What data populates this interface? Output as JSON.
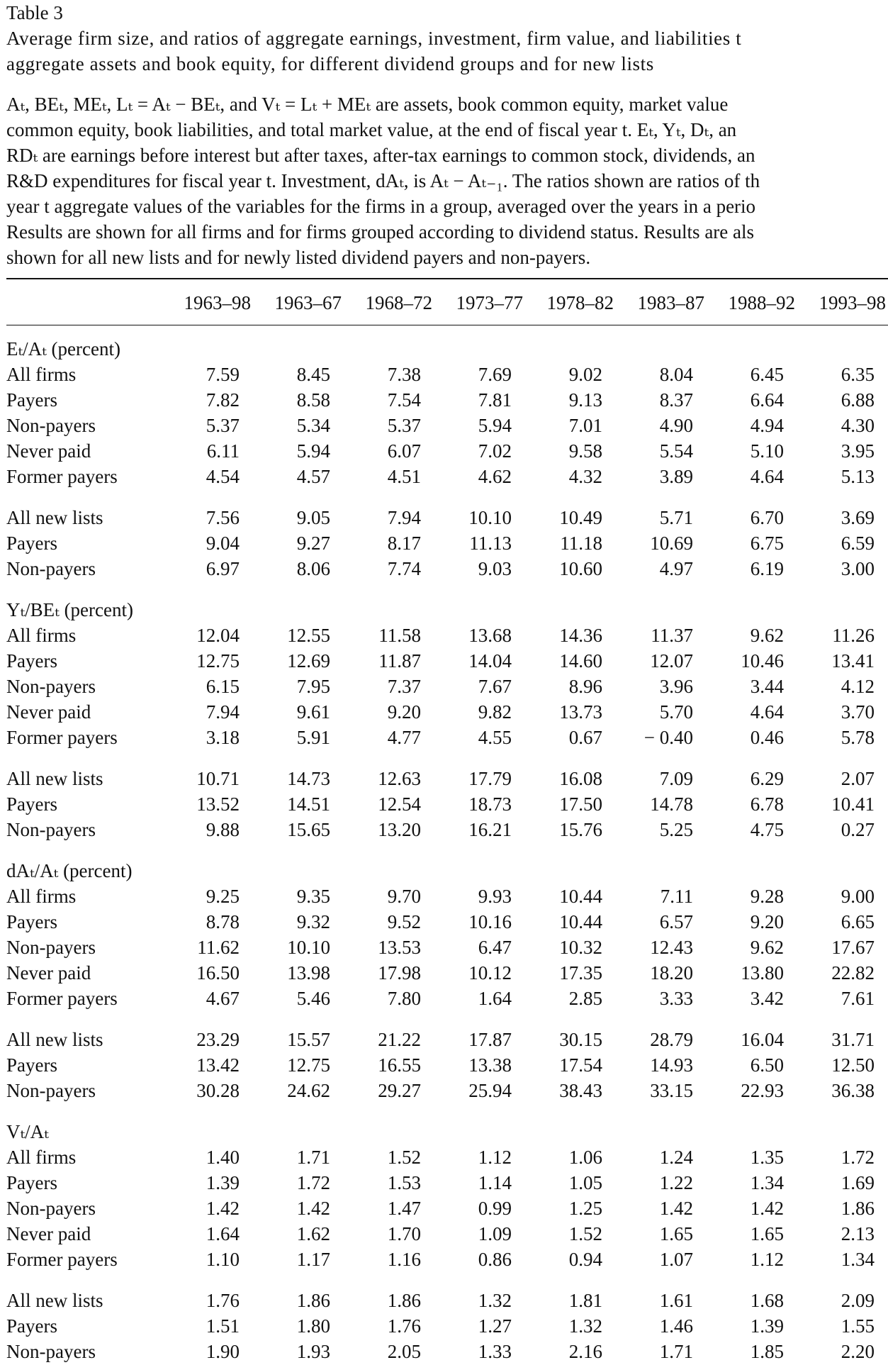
{
  "table_label": "Table 3",
  "caption": [
    "Average firm size, and ratios of aggregate earnings, investment, firm value, and liabilities t",
    "aggregate assets and book equity, for different dividend groups and for new lists"
  ],
  "notes": [
    "Aₜ, BEₜ, MEₜ, Lₜ = Aₜ − BEₜ, and Vₜ = Lₜ + MEₜ are assets, book common equity, market value",
    "common equity, book liabilities, and total market value, at the end of fiscal year t. Eₜ, Yₜ, Dₜ, an",
    "RDₜ are earnings before interest but after taxes, after-tax earnings to common stock, dividends, an",
    "R&D expenditures for fiscal year t. Investment, dAₜ, is Aₜ − Aₜ₋₁. The ratios shown are ratios of th",
    "year t aggregate values of the variables for the firms in a group, averaged over the years in a perio",
    "Results are shown for all firms and for firms grouped according to dividend status. Results are als",
    "shown for all new lists and for newly listed dividend payers and non-payers."
  ],
  "columns": [
    "1963–98",
    "1963–67",
    "1968–72",
    "1973–77",
    "1978–82",
    "1983–87",
    "1988–92",
    "1993–98"
  ],
  "sections": [
    {
      "title": "Eₜ/Aₜ (percent)",
      "groups": [
        [
          {
            "label": "All firms",
            "values": [
              "7.59",
              "8.45",
              "7.38",
              "7.69",
              "9.02",
              "8.04",
              "6.45",
              "6.35"
            ]
          },
          {
            "label": "Payers",
            "values": [
              "7.82",
              "8.58",
              "7.54",
              "7.81",
              "9.13",
              "8.37",
              "6.64",
              "6.88"
            ]
          },
          {
            "label": "Non-payers",
            "values": [
              "5.37",
              "5.34",
              "5.37",
              "5.94",
              "7.01",
              "4.90",
              "4.94",
              "4.30"
            ]
          },
          {
            "label": "Never paid",
            "values": [
              "6.11",
              "5.94",
              "6.07",
              "7.02",
              "9.58",
              "5.54",
              "5.10",
              "3.95"
            ]
          },
          {
            "label": "Former payers",
            "values": [
              "4.54",
              "4.57",
              "4.51",
              "4.62",
              "4.32",
              "3.89",
              "4.64",
              "5.13"
            ]
          }
        ],
        [
          {
            "label": "All new lists",
            "values": [
              "7.56",
              "9.05",
              "7.94",
              "10.10",
              "10.49",
              "5.71",
              "6.70",
              "3.69"
            ]
          },
          {
            "label": "Payers",
            "values": [
              "9.04",
              "9.27",
              "8.17",
              "11.13",
              "11.18",
              "10.69",
              "6.75",
              "6.59"
            ]
          },
          {
            "label": "Non-payers",
            "values": [
              "6.97",
              "8.06",
              "7.74",
              "9.03",
              "10.60",
              "4.97",
              "6.19",
              "3.00"
            ]
          }
        ]
      ]
    },
    {
      "title": "Yₜ/BEₜ (percent)",
      "groups": [
        [
          {
            "label": "All firms",
            "values": [
              "12.04",
              "12.55",
              "11.58",
              "13.68",
              "14.36",
              "11.37",
              "9.62",
              "11.26"
            ]
          },
          {
            "label": "Payers",
            "values": [
              "12.75",
              "12.69",
              "11.87",
              "14.04",
              "14.60",
              "12.07",
              "10.46",
              "13.41"
            ]
          },
          {
            "label": "Non-payers",
            "values": [
              "6.15",
              "7.95",
              "7.37",
              "7.67",
              "8.96",
              "3.96",
              "3.44",
              "4.12"
            ]
          },
          {
            "label": "Never paid",
            "values": [
              "7.94",
              "9.61",
              "9.20",
              "9.82",
              "13.73",
              "5.70",
              "4.64",
              "3.70"
            ]
          },
          {
            "label": "Former payers",
            "values": [
              "3.18",
              "5.91",
              "4.77",
              "4.55",
              "0.67",
              "− 0.40",
              "0.46",
              "5.78"
            ]
          }
        ],
        [
          {
            "label": "All new lists",
            "values": [
              "10.71",
              "14.73",
              "12.63",
              "17.79",
              "16.08",
              "7.09",
              "6.29",
              "2.07"
            ]
          },
          {
            "label": "Payers",
            "values": [
              "13.52",
              "14.51",
              "12.54",
              "18.73",
              "17.50",
              "14.78",
              "6.78",
              "10.41"
            ]
          },
          {
            "label": "Non-payers",
            "values": [
              "9.88",
              "15.65",
              "13.20",
              "16.21",
              "15.76",
              "5.25",
              "4.75",
              "0.27"
            ]
          }
        ]
      ]
    },
    {
      "title": "dAₜ/Aₜ (percent)",
      "groups": [
        [
          {
            "label": "All firms",
            "values": [
              "9.25",
              "9.35",
              "9.70",
              "9.93",
              "10.44",
              "7.11",
              "9.28",
              "9.00"
            ]
          },
          {
            "label": "Payers",
            "values": [
              "8.78",
              "9.32",
              "9.52",
              "10.16",
              "10.44",
              "6.57",
              "9.20",
              "6.65"
            ]
          },
          {
            "label": "Non-payers",
            "values": [
              "11.62",
              "10.10",
              "13.53",
              "6.47",
              "10.32",
              "12.43",
              "9.62",
              "17.67"
            ]
          },
          {
            "label": "Never paid",
            "values": [
              "16.50",
              "13.98",
              "17.98",
              "10.12",
              "17.35",
              "18.20",
              "13.80",
              "22.82"
            ]
          },
          {
            "label": "Former payers",
            "values": [
              "4.67",
              "5.46",
              "7.80",
              "1.64",
              "2.85",
              "3.33",
              "3.42",
              "7.61"
            ]
          }
        ],
        [
          {
            "label": "All new lists",
            "values": [
              "23.29",
              "15.57",
              "21.22",
              "17.87",
              "30.15",
              "28.79",
              "16.04",
              "31.71"
            ]
          },
          {
            "label": "Payers",
            "values": [
              "13.42",
              "12.75",
              "16.55",
              "13.38",
              "17.54",
              "14.93",
              "6.50",
              "12.50"
            ]
          },
          {
            "label": "Non-payers",
            "values": [
              "30.28",
              "24.62",
              "29.27",
              "25.94",
              "38.43",
              "33.15",
              "22.93",
              "36.38"
            ]
          }
        ]
      ]
    },
    {
      "title": "Vₜ/Aₜ",
      "groups": [
        [
          {
            "label": "All firms",
            "values": [
              "1.40",
              "1.71",
              "1.52",
              "1.12",
              "1.06",
              "1.24",
              "1.35",
              "1.72"
            ]
          },
          {
            "label": "Payers",
            "values": [
              "1.39",
              "1.72",
              "1.53",
              "1.14",
              "1.05",
              "1.22",
              "1.34",
              "1.69"
            ]
          },
          {
            "label": "Non-payers",
            "values": [
              "1.42",
              "1.42",
              "1.47",
              "0.99",
              "1.25",
              "1.42",
              "1.42",
              "1.86"
            ]
          },
          {
            "label": "Never paid",
            "values": [
              "1.64",
              "1.62",
              "1.70",
              "1.09",
              "1.52",
              "1.65",
              "1.65",
              "2.13"
            ]
          },
          {
            "label": "Former payers",
            "values": [
              "1.10",
              "1.17",
              "1.16",
              "0.86",
              "0.94",
              "1.07",
              "1.12",
              "1.34"
            ]
          }
        ],
        [
          {
            "label": "All new lists",
            "values": [
              "1.76",
              "1.86",
              "1.86",
              "1.32",
              "1.81",
              "1.61",
              "1.68",
              "2.09"
            ]
          },
          {
            "label": "Payers",
            "values": [
              "1.51",
              "1.80",
              "1.76",
              "1.27",
              "1.32",
              "1.46",
              "1.39",
              "1.55"
            ]
          },
          {
            "label": "Non-payers",
            "values": [
              "1.90",
              "1.93",
              "2.05",
              "1.33",
              "2.16",
              "1.71",
              "1.85",
              "2.20"
            ]
          }
        ]
      ]
    }
  ]
}
